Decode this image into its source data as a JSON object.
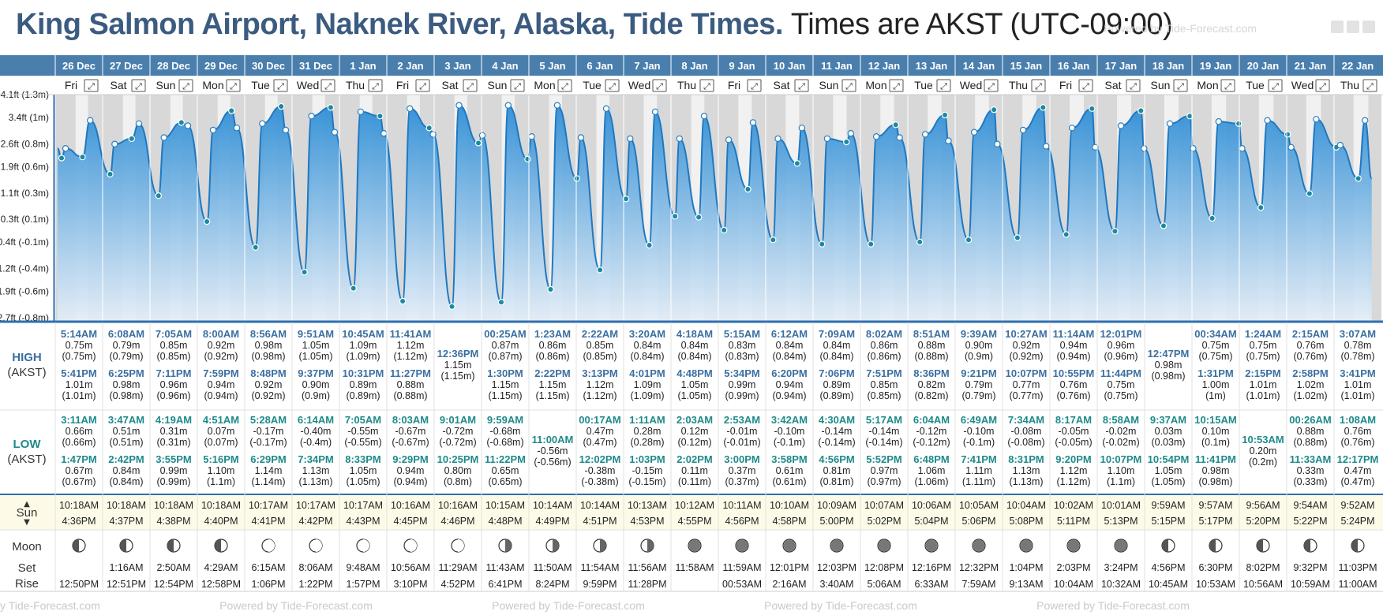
{
  "header": {
    "title_main": "King Salmon Airport, Naknek River, Alaska, Tide Times.",
    "title_sub": "Times are AKST (UTC-09:00)",
    "powered_by": "Powered by Tide-Forecast.com"
  },
  "labels": {
    "high": "HIGH",
    "low": "LOW",
    "tz": "(AKST)",
    "sun": "Sun",
    "moon": "Moon",
    "set": "Set",
    "rise": "Rise"
  },
  "colors": {
    "header_bar": "#4a7fad",
    "high_time": "#3b6fa0",
    "low_time": "#1f8a8a",
    "tide_fill": "#2f8ed6",
    "tide_line": "#1f78c0",
    "sun_row_bg": "#fdfbe8"
  },
  "chart_data": {
    "type": "area",
    "title": "King Salmon Airport, Naknek River, Alaska, Tide Times.",
    "xlabel": "",
    "ylabel": "",
    "ylim": [
      -2.8,
      4.1
    ],
    "y_unit": "ft",
    "y_ticks": [
      "4.1ft (1.3m)",
      "3.4ft (1m)",
      "2.6ft (0.8m)",
      "1.9ft (0.6m)",
      "1.1ft (0.3m)",
      "0.3ft (0.1m)",
      "-0.4ft (-0.1m)",
      "-1.2ft (-0.4m)",
      "-1.9ft (-0.6m)",
      "-2.7ft (-0.8m)"
    ],
    "y_tick_values": [
      4.1,
      3.4,
      2.6,
      1.9,
      1.1,
      0.3,
      -0.4,
      -1.2,
      -1.9,
      -2.7
    ],
    "days": [
      {
        "date": "26 Dec",
        "dow": "Fri",
        "highs": [
          [
            "5:14AM",
            "0.75m",
            "(0.75m)"
          ],
          [
            "5:41PM",
            "1.01m",
            "(1.01m)"
          ]
        ],
        "lows": [
          [
            "3:11AM",
            "0.66m",
            "(0.66m)"
          ],
          [
            "1:47PM",
            "0.67m",
            "(0.67m)"
          ]
        ],
        "sun": [
          "10:18AM",
          "4:36PM"
        ],
        "moon": [
          "",
          "12:50PM"
        ]
      },
      {
        "date": "27 Dec",
        "dow": "Sat",
        "highs": [
          [
            "6:08AM",
            "0.79m",
            "(0.79m)"
          ],
          [
            "6:25PM",
            "0.98m",
            "(0.98m)"
          ]
        ],
        "lows": [
          [
            "3:47AM",
            "0.51m",
            "(0.51m)"
          ],
          [
            "2:42PM",
            "0.84m",
            "(0.84m)"
          ]
        ],
        "sun": [
          "10:18AM",
          "4:37PM"
        ],
        "moon": [
          "1:16AM",
          "12:51PM"
        ]
      },
      {
        "date": "28 Dec",
        "dow": "Sun",
        "highs": [
          [
            "7:05AM",
            "0.85m",
            "(0.85m)"
          ],
          [
            "7:11PM",
            "0.96m",
            "(0.96m)"
          ]
        ],
        "lows": [
          [
            "4:19AM",
            "0.31m",
            "(0.31m)"
          ],
          [
            "3:55PM",
            "0.99m",
            "(0.99m)"
          ]
        ],
        "sun": [
          "10:18AM",
          "4:38PM"
        ],
        "moon": [
          "2:50AM",
          "12:54PM"
        ]
      },
      {
        "date": "29 Dec",
        "dow": "Mon",
        "highs": [
          [
            "8:00AM",
            "0.92m",
            "(0.92m)"
          ],
          [
            "7:59PM",
            "0.94m",
            "(0.94m)"
          ]
        ],
        "lows": [
          [
            "4:51AM",
            "0.07m",
            "(0.07m)"
          ],
          [
            "5:16PM",
            "1.10m",
            "(1.1m)"
          ]
        ],
        "sun": [
          "10:18AM",
          "4:40PM"
        ],
        "moon": [
          "4:29AM",
          "12:58PM"
        ]
      },
      {
        "date": "30 Dec",
        "dow": "Tue",
        "highs": [
          [
            "8:56AM",
            "0.98m",
            "(0.98m)"
          ],
          [
            "8:48PM",
            "0.92m",
            "(0.92m)"
          ]
        ],
        "lows": [
          [
            "5:28AM",
            "-0.17m",
            "(-0.17m)"
          ],
          [
            "6:29PM",
            "1.14m",
            "(1.14m)"
          ]
        ],
        "sun": [
          "10:17AM",
          "4:41PM"
        ],
        "moon": [
          "6:15AM",
          "1:06PM"
        ]
      },
      {
        "date": "31 Dec",
        "dow": "Wed",
        "highs": [
          [
            "9:51AM",
            "1.05m",
            "(1.05m)"
          ],
          [
            "9:37PM",
            "0.90m",
            "(0.9m)"
          ]
        ],
        "lows": [
          [
            "6:14AM",
            "-0.40m",
            "(-0.4m)"
          ],
          [
            "7:34PM",
            "1.13m",
            "(1.13m)"
          ]
        ],
        "sun": [
          "10:17AM",
          "4:42PM"
        ],
        "moon": [
          "8:06AM",
          "1:22PM"
        ]
      },
      {
        "date": "1 Jan",
        "dow": "Thu",
        "highs": [
          [
            "10:45AM",
            "1.09m",
            "(1.09m)"
          ],
          [
            "10:31PM",
            "0.89m",
            "(0.89m)"
          ]
        ],
        "lows": [
          [
            "7:05AM",
            "-0.55m",
            "(-0.55m)"
          ],
          [
            "8:33PM",
            "1.05m",
            "(1.05m)"
          ]
        ],
        "sun": [
          "10:17AM",
          "4:43PM"
        ],
        "moon": [
          "9:48AM",
          "1:57PM"
        ]
      },
      {
        "date": "2 Jan",
        "dow": "Fri",
        "highs": [
          [
            "11:41AM",
            "1.12m",
            "(1.12m)"
          ],
          [
            "11:27PM",
            "0.88m",
            "(0.88m)"
          ]
        ],
        "lows": [
          [
            "8:03AM",
            "-0.67m",
            "(-0.67m)"
          ],
          [
            "9:29PM",
            "0.94m",
            "(0.94m)"
          ]
        ],
        "sun": [
          "10:16AM",
          "4:45PM"
        ],
        "moon": [
          "10:56AM",
          "3:10PM"
        ]
      },
      {
        "date": "3 Jan",
        "dow": "Sat",
        "highs": [
          [
            "12:36PM",
            "1.15m",
            "(1.15m)"
          ]
        ],
        "lows": [
          [
            "9:01AM",
            "-0.72m",
            "(-0.72m)"
          ],
          [
            "10:25PM",
            "0.80m",
            "(0.8m)"
          ]
        ],
        "sun": [
          "10:16AM",
          "4:46PM"
        ],
        "moon": [
          "11:29AM",
          "4:52PM"
        ]
      },
      {
        "date": "4 Jan",
        "dow": "Sun",
        "highs": [
          [
            "00:25AM",
            "0.87m",
            "(0.87m)"
          ],
          [
            "1:30PM",
            "1.15m",
            "(1.15m)"
          ]
        ],
        "lows": [
          [
            "9:59AM",
            "-0.68m",
            "(-0.68m)"
          ],
          [
            "11:22PM",
            "0.65m",
            "(0.65m)"
          ]
        ],
        "sun": [
          "10:15AM",
          "4:48PM"
        ],
        "moon": [
          "11:43AM",
          "6:41PM"
        ]
      },
      {
        "date": "5 Jan",
        "dow": "Mon",
        "highs": [
          [
            "1:23AM",
            "0.86m",
            "(0.86m)"
          ],
          [
            "2:22PM",
            "1.15m",
            "(1.15m)"
          ]
        ],
        "lows": [
          [
            "11:00AM",
            "-0.56m",
            "(-0.56m)"
          ]
        ],
        "sun": [
          "10:14AM",
          "4:49PM"
        ],
        "moon": [
          "11:50AM",
          "8:24PM"
        ]
      },
      {
        "date": "6 Jan",
        "dow": "Tue",
        "highs": [
          [
            "2:22AM",
            "0.85m",
            "(0.85m)"
          ],
          [
            "3:13PM",
            "1.12m",
            "(1.12m)"
          ]
        ],
        "lows": [
          [
            "00:17AM",
            "0.47m",
            "(0.47m)"
          ],
          [
            "12:02PM",
            "-0.38m",
            "(-0.38m)"
          ]
        ],
        "sun": [
          "10:14AM",
          "4:51PM"
        ],
        "moon": [
          "11:54AM",
          "9:59PM"
        ]
      },
      {
        "date": "7 Jan",
        "dow": "Wed",
        "highs": [
          [
            "3:20AM",
            "0.84m",
            "(0.84m)"
          ],
          [
            "4:01PM",
            "1.09m",
            "(1.09m)"
          ]
        ],
        "lows": [
          [
            "1:11AM",
            "0.28m",
            "(0.28m)"
          ],
          [
            "1:03PM",
            "-0.15m",
            "(-0.15m)"
          ]
        ],
        "sun": [
          "10:13AM",
          "4:53PM"
        ],
        "moon": [
          "11:56AM",
          "11:28PM"
        ]
      },
      {
        "date": "8 Jan",
        "dow": "Thu",
        "highs": [
          [
            "4:18AM",
            "0.84m",
            "(0.84m)"
          ],
          [
            "4:48PM",
            "1.05m",
            "(1.05m)"
          ]
        ],
        "lows": [
          [
            "2:03AM",
            "0.12m",
            "(0.12m)"
          ],
          [
            "2:02PM",
            "0.11m",
            "(0.11m)"
          ]
        ],
        "sun": [
          "10:12AM",
          "4:55PM"
        ],
        "moon": [
          "11:58AM",
          ""
        ]
      },
      {
        "date": "9 Jan",
        "dow": "Fri",
        "highs": [
          [
            "5:15AM",
            "0.83m",
            "(0.83m)"
          ],
          [
            "5:34PM",
            "0.99m",
            "(0.99m)"
          ]
        ],
        "lows": [
          [
            "2:53AM",
            "-0.01m",
            "(-0.01m)"
          ],
          [
            "3:00PM",
            "0.37m",
            "(0.37m)"
          ]
        ],
        "sun": [
          "10:11AM",
          "4:56PM"
        ],
        "moon": [
          "11:59AM",
          "00:53AM"
        ]
      },
      {
        "date": "10 Jan",
        "dow": "Sat",
        "highs": [
          [
            "6:12AM",
            "0.84m",
            "(0.84m)"
          ],
          [
            "6:20PM",
            "0.94m",
            "(0.94m)"
          ]
        ],
        "lows": [
          [
            "3:42AM",
            "-0.10m",
            "(-0.1m)"
          ],
          [
            "3:58PM",
            "0.61m",
            "(0.61m)"
          ]
        ],
        "sun": [
          "10:10AM",
          "4:58PM"
        ],
        "moon": [
          "12:01PM",
          "2:16AM"
        ]
      },
      {
        "date": "11 Jan",
        "dow": "Sun",
        "highs": [
          [
            "7:09AM",
            "0.84m",
            "(0.84m)"
          ],
          [
            "7:06PM",
            "0.89m",
            "(0.89m)"
          ]
        ],
        "lows": [
          [
            "4:30AM",
            "-0.14m",
            "(-0.14m)"
          ],
          [
            "4:56PM",
            "0.81m",
            "(0.81m)"
          ]
        ],
        "sun": [
          "10:09AM",
          "5:00PM"
        ],
        "moon": [
          "12:03PM",
          "3:40AM"
        ]
      },
      {
        "date": "12 Jan",
        "dow": "Mon",
        "highs": [
          [
            "8:02AM",
            "0.86m",
            "(0.86m)"
          ],
          [
            "7:51PM",
            "0.85m",
            "(0.85m)"
          ]
        ],
        "lows": [
          [
            "5:17AM",
            "-0.14m",
            "(-0.14m)"
          ],
          [
            "5:52PM",
            "0.97m",
            "(0.97m)"
          ]
        ],
        "sun": [
          "10:07AM",
          "5:02PM"
        ],
        "moon": [
          "12:08PM",
          "5:06AM"
        ]
      },
      {
        "date": "13 Jan",
        "dow": "Tue",
        "highs": [
          [
            "8:51AM",
            "0.88m",
            "(0.88m)"
          ],
          [
            "8:36PM",
            "0.82m",
            "(0.82m)"
          ]
        ],
        "lows": [
          [
            "6:04AM",
            "-0.12m",
            "(-0.12m)"
          ],
          [
            "6:48PM",
            "1.06m",
            "(1.06m)"
          ]
        ],
        "sun": [
          "10:06AM",
          "5:04PM"
        ],
        "moon": [
          "12:16PM",
          "6:33AM"
        ]
      },
      {
        "date": "14 Jan",
        "dow": "Wed",
        "highs": [
          [
            "9:39AM",
            "0.90m",
            "(0.9m)"
          ],
          [
            "9:21PM",
            "0.79m",
            "(0.79m)"
          ]
        ],
        "lows": [
          [
            "6:49AM",
            "-0.10m",
            "(-0.1m)"
          ],
          [
            "7:41PM",
            "1.11m",
            "(1.11m)"
          ]
        ],
        "sun": [
          "10:05AM",
          "5:06PM"
        ],
        "moon": [
          "12:32PM",
          "7:59AM"
        ]
      },
      {
        "date": "15 Jan",
        "dow": "Thu",
        "highs": [
          [
            "10:27AM",
            "0.92m",
            "(0.92m)"
          ],
          [
            "10:07PM",
            "0.77m",
            "(0.77m)"
          ]
        ],
        "lows": [
          [
            "7:34AM",
            "-0.08m",
            "(-0.08m)"
          ],
          [
            "8:31PM",
            "1.13m",
            "(1.13m)"
          ]
        ],
        "sun": [
          "10:04AM",
          "5:08PM"
        ],
        "moon": [
          "1:04PM",
          "9:13AM"
        ]
      },
      {
        "date": "16 Jan",
        "dow": "Fri",
        "highs": [
          [
            "11:14AM",
            "0.94m",
            "(0.94m)"
          ],
          [
            "10:55PM",
            "0.76m",
            "(0.76m)"
          ]
        ],
        "lows": [
          [
            "8:17AM",
            "-0.05m",
            "(-0.05m)"
          ],
          [
            "9:20PM",
            "1.12m",
            "(1.12m)"
          ]
        ],
        "sun": [
          "10:02AM",
          "5:11PM"
        ],
        "moon": [
          "2:03PM",
          "10:04AM"
        ]
      },
      {
        "date": "17 Jan",
        "dow": "Sat",
        "highs": [
          [
            "12:01PM",
            "0.96m",
            "(0.96m)"
          ],
          [
            "11:44PM",
            "0.75m",
            "(0.75m)"
          ]
        ],
        "lows": [
          [
            "8:58AM",
            "-0.02m",
            "(-0.02m)"
          ],
          [
            "10:07PM",
            "1.10m",
            "(1.1m)"
          ]
        ],
        "sun": [
          "10:01AM",
          "5:13PM"
        ],
        "moon": [
          "3:24PM",
          "10:32AM"
        ]
      },
      {
        "date": "18 Jan",
        "dow": "Sun",
        "highs": [
          [
            "12:47PM",
            "0.98m",
            "(0.98m)"
          ]
        ],
        "lows": [
          [
            "9:37AM",
            "0.03m",
            "(0.03m)"
          ],
          [
            "10:54PM",
            "1.05m",
            "(1.05m)"
          ]
        ],
        "sun": [
          "9:59AM",
          "5:15PM"
        ],
        "moon": [
          "4:56PM",
          "10:45AM"
        ]
      },
      {
        "date": "19 Jan",
        "dow": "Mon",
        "highs": [
          [
            "00:34AM",
            "0.75m",
            "(0.75m)"
          ],
          [
            "1:31PM",
            "1.00m",
            "(1m)"
          ]
        ],
        "lows": [
          [
            "10:15AM",
            "0.10m",
            "(0.1m)"
          ],
          [
            "11:41PM",
            "0.98m",
            "(0.98m)"
          ]
        ],
        "sun": [
          "9:57AM",
          "5:17PM"
        ],
        "moon": [
          "6:30PM",
          "10:53AM"
        ]
      },
      {
        "date": "20 Jan",
        "dow": "Tue",
        "highs": [
          [
            "1:24AM",
            "0.75m",
            "(0.75m)"
          ],
          [
            "2:15PM",
            "1.01m",
            "(1.01m)"
          ]
        ],
        "lows": [
          [
            "10:53AM",
            "0.20m",
            "(0.2m)"
          ]
        ],
        "sun": [
          "9:56AM",
          "5:20PM"
        ],
        "moon": [
          "8:02PM",
          "10:56AM"
        ]
      },
      {
        "date": "21 Jan",
        "dow": "Wed",
        "highs": [
          [
            "2:15AM",
            "0.76m",
            "(0.76m)"
          ],
          [
            "2:58PM",
            "1.02m",
            "(1.02m)"
          ]
        ],
        "lows": [
          [
            "00:26AM",
            "0.88m",
            "(0.88m)"
          ],
          [
            "11:33AM",
            "0.33m",
            "(0.33m)"
          ]
        ],
        "sun": [
          "9:54AM",
          "5:22PM"
        ],
        "moon": [
          "9:32PM",
          "10:59AM"
        ]
      },
      {
        "date": "22 Jan",
        "dow": "Thu",
        "highs": [
          [
            "3:07AM",
            "0.78m",
            "(0.78m)"
          ],
          [
            "3:41PM",
            "1.01m",
            "(1.01m)"
          ]
        ],
        "lows": [
          [
            "1:08AM",
            "0.76m",
            "(0.76m)"
          ],
          [
            "12:17PM",
            "0.47m",
            "(0.47m)"
          ]
        ],
        "sun": [
          "9:52AM",
          "5:24PM"
        ],
        "moon": [
          "11:03PM",
          "11:00AM"
        ]
      }
    ]
  }
}
